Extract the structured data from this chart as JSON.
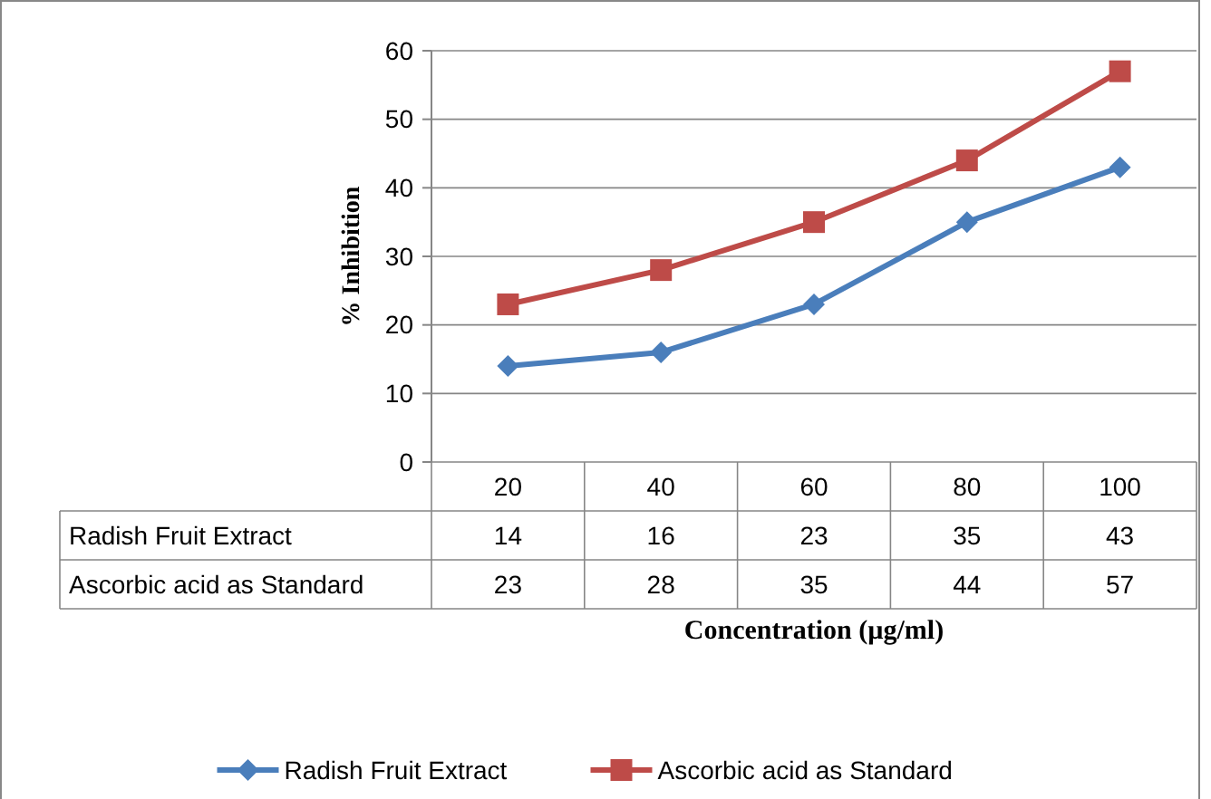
{
  "chart_data": {
    "type": "line",
    "xlabel": "Concentration (µg/ml)",
    "ylabel": "% Inhibition",
    "categories": [
      "20",
      "40",
      "60",
      "80",
      "100"
    ],
    "series": [
      {
        "name": "Radish Fruit Extract",
        "color": "#4a7ebb",
        "values": [
          14,
          16,
          23,
          35,
          43
        ],
        "marker": "diamond"
      },
      {
        "name": "Ascorbic acid as Standard",
        "color": "#be4b48",
        "values": [
          23,
          28,
          35,
          44,
          57
        ],
        "marker": "square"
      }
    ],
    "ylim": [
      0,
      60
    ],
    "yticks": [
      0,
      10,
      20,
      30,
      40,
      50,
      60
    ],
    "grid": "y",
    "data_labels": true,
    "legend": "bottom",
    "line_style": "solid"
  }
}
